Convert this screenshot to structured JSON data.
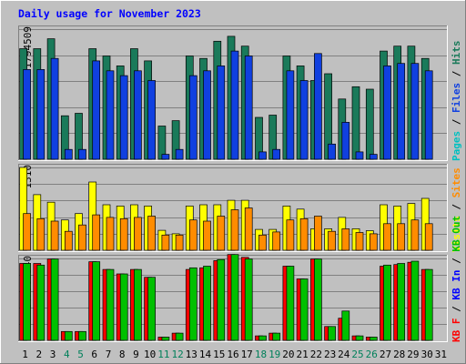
{
  "chart_data": {
    "title": "Daily usage for November 2023",
    "type": "bar",
    "categories": [
      "1",
      "2",
      "3",
      "4",
      "5",
      "6",
      "7",
      "8",
      "9",
      "10",
      "11",
      "12",
      "13",
      "14",
      "15",
      "16",
      "17",
      "18",
      "19",
      "20",
      "21",
      "22",
      "23",
      "24",
      "25",
      "26",
      "27",
      "28",
      "29",
      "30",
      "31"
    ],
    "weekend_days": [
      "4",
      "5",
      "11",
      "12",
      "18",
      "19",
      "25",
      "26"
    ],
    "panels": [
      {
        "id": "hits",
        "ymax_label": "1794509",
        "ylim": [
          0,
          1794509
        ],
        "legend": [
          {
            "label": "Pages",
            "color": "#00c0c0"
          },
          {
            "label": "Files",
            "color": "#1040e0"
          },
          {
            "label": "Hits",
            "color": "#1a7a5a"
          }
        ],
        "series": [
          {
            "name": "Hits",
            "color": "#1a7a5a",
            "values": [
              1525000,
              1525000,
              1661000,
              600000,
              634000,
              1525000,
              1424000,
              1288000,
              1525000,
              1356000,
              458000,
              532000,
              1424000,
              1390000,
              1628000,
              1695000,
              1560000,
              577000,
              608000,
              1424000,
              1288000,
              1086000,
              1180000,
              831000,
              1000000,
              966000,
              1492000,
              1560000,
              1560000,
              1390000,
              0
            ]
          },
          {
            "name": "Files",
            "color": "#1040e0",
            "values": [
              1237000,
              1237000,
              1390000,
              136000,
              136000,
              1356000,
              1220000,
              1153000,
              1220000,
              1085000,
              68000,
              136000,
              1153000,
              1220000,
              1288000,
              1492000,
              1424000,
              102000,
              136000,
              1220000,
              1085000,
              1458000,
              210000,
              509000,
              102000,
              68000,
              1288000,
              1322000,
              1322000,
              1220000,
              0
            ]
          },
          {
            "name": "Pages",
            "color": "#00c0c0",
            "values": [
              0,
              0,
              0,
              0,
              0,
              0,
              0,
              0,
              0,
              0,
              0,
              0,
              0,
              0,
              0,
              0,
              0,
              0,
              0,
              0,
              0,
              0,
              0,
              0,
              0,
              0,
              0,
              0,
              0,
              0,
              0
            ]
          }
        ]
      },
      {
        "id": "visits",
        "ymax_label": "1310",
        "ylim": [
          0,
          1310
        ],
        "legend": [
          {
            "label": "Visits",
            "color": "#ffff00"
          },
          {
            "label": "Sites",
            "color": "#ff8c00"
          }
        ],
        "series": [
          {
            "name": "Visits",
            "color": "#ffff00",
            "values": [
              1310,
              880,
              760,
              480,
              580,
              1080,
              720,
              700,
              720,
              700,
              315,
              260,
              700,
              720,
              720,
              790,
              790,
              330,
              330,
              700,
              650,
              340,
              340,
              520,
              340,
              310,
              720,
              700,
              740,
              820,
              0
            ]
          },
          {
            "name": "Sites",
            "color": "#ff8c00",
            "values": [
              580,
              500,
              460,
              300,
              400,
              560,
              520,
              500,
              520,
              540,
              240,
              240,
              480,
              460,
              540,
              640,
              670,
              240,
              290,
              480,
              500,
              540,
              300,
              340,
              280,
              260,
              420,
              420,
              480,
              420,
              0
            ]
          }
        ]
      },
      {
        "id": "kbytes",
        "ymax_label": "147967540",
        "ylim": [
          0,
          147967540
        ],
        "legend": [
          {
            "label": "KB F",
            "color": "#ff0000"
          },
          {
            "label": "KB In",
            "color": "#0000ff"
          },
          {
            "label": "KB Out",
            "color": "#00c000"
          }
        ],
        "series": [
          {
            "name": "KB F",
            "color": "#ff0000",
            "values": [
              139000000,
              139000000,
              147000000,
              16000000,
              16000000,
              142000000,
              128000000,
              120000000,
              128000000,
              114000000,
              6000000,
              13000000,
              128000000,
              131000000,
              144000000,
              155000000,
              150000000,
              8000000,
              13000000,
              134000000,
              111000000,
              147000000,
              25000000,
              40000000,
              8000000,
              6000000,
              134000000,
              137000000,
              141000000,
              128000000,
              0
            ]
          },
          {
            "name": "KB In",
            "color": "#0000ff",
            "values": [
              0,
              0,
              0,
              0,
              0,
              0,
              0,
              0,
              0,
              0,
              0,
              0,
              0,
              0,
              0,
              0,
              0,
              0,
              0,
              0,
              0,
              0,
              0,
              0,
              0,
              0,
              0,
              0,
              0,
              0,
              0
            ]
          },
          {
            "name": "KB Out",
            "color": "#00c000",
            "values": [
              139000000,
              136000000,
              147000000,
              16000000,
              16000000,
              142000000,
              128000000,
              120000000,
              128000000,
              114000000,
              6000000,
              13000000,
              131000000,
              134000000,
              146000000,
              155000000,
              147000000,
              8000000,
              13000000,
              134000000,
              111000000,
              147000000,
              25000000,
              53000000,
              8000000,
              6000000,
              136000000,
              139000000,
              143000000,
              128000000,
              0
            ]
          }
        ]
      }
    ]
  }
}
